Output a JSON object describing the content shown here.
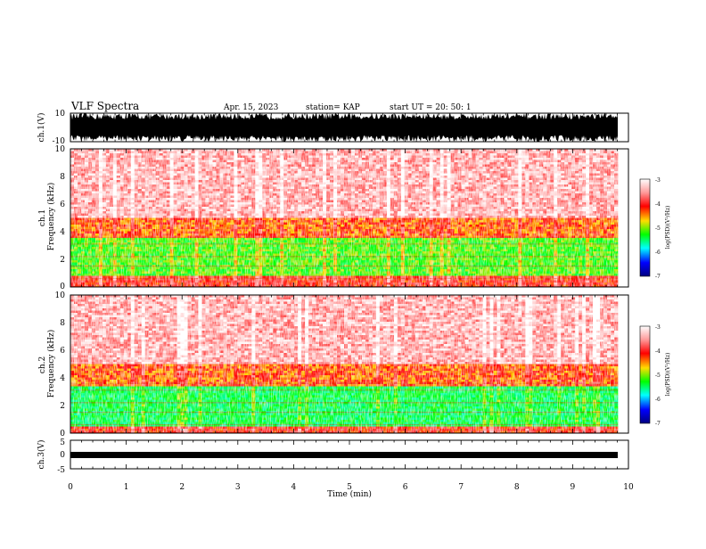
{
  "header": {
    "title": "VLF Spectra",
    "date": "Apr. 15, 2023",
    "station": "station= KAP",
    "start": "start  UT  =  20: 50: 1"
  },
  "colorbar": {
    "label": "log(PSD)(V²/Hz)",
    "ticks": [
      "-3",
      "-4",
      "-5",
      "-6",
      "-7"
    ],
    "colors": [
      "#ffffff",
      "#ff9999",
      "#ff0000",
      "#ffdd00",
      "#00ff00",
      "#00ffff",
      "#0000ff",
      "#000080"
    ]
  },
  "chart_data": [
    {
      "type": "line",
      "panel": "ch1-waveform",
      "ylabel": "ch.1(V)",
      "yticks": [
        "10",
        "-10"
      ],
      "ylim": [
        -10,
        10
      ],
      "xlim": [
        0,
        10
      ],
      "description_values": {
        "amplitude_range": [
          -10,
          10
        ]
      }
    },
    {
      "type": "heatmap",
      "panel": "ch1-spectrogram",
      "ylabel": "ch.1\nFrequency (kHz)",
      "yticks": [
        "0",
        "2",
        "4",
        "6",
        "8",
        "10"
      ],
      "ylim": [
        0,
        10
      ],
      "xlim": [
        0,
        10
      ],
      "bands_khz": [
        {
          "from": 0,
          "to": 0.8,
          "level": -3.8
        },
        {
          "from": 0.8,
          "to": 3.6,
          "level": -4.7
        },
        {
          "from": 3.6,
          "to": 5,
          "level": -4.0
        },
        {
          "from": 5,
          "to": 10,
          "level": -3.3
        }
      ]
    },
    {
      "type": "heatmap",
      "panel": "ch2-spectrogram",
      "ylabel": "ch.2\nFrequency (kHz)",
      "yticks": [
        "0",
        "2",
        "4",
        "6",
        "8",
        "10"
      ],
      "ylim": [
        0,
        10
      ],
      "xlim": [
        0,
        10
      ],
      "bands_khz": [
        {
          "from": 0,
          "to": 0.5,
          "level": -3.8
        },
        {
          "from": 0.5,
          "to": 3.4,
          "level": -5.0
        },
        {
          "from": 3.4,
          "to": 5,
          "level": -4.0
        },
        {
          "from": 5,
          "to": 10,
          "level": -3.3
        }
      ]
    },
    {
      "type": "line",
      "panel": "ch3-waveform",
      "ylabel": "ch.3(V)",
      "yticks": [
        "5",
        "0",
        "-5"
      ],
      "ylim": [
        -5,
        5
      ],
      "xlim": [
        0,
        10
      ],
      "xlabel": "Time (min)",
      "xticks": [
        "0",
        "1",
        "2",
        "3",
        "4",
        "5",
        "6",
        "7",
        "8",
        "9",
        "10"
      ]
    }
  ]
}
